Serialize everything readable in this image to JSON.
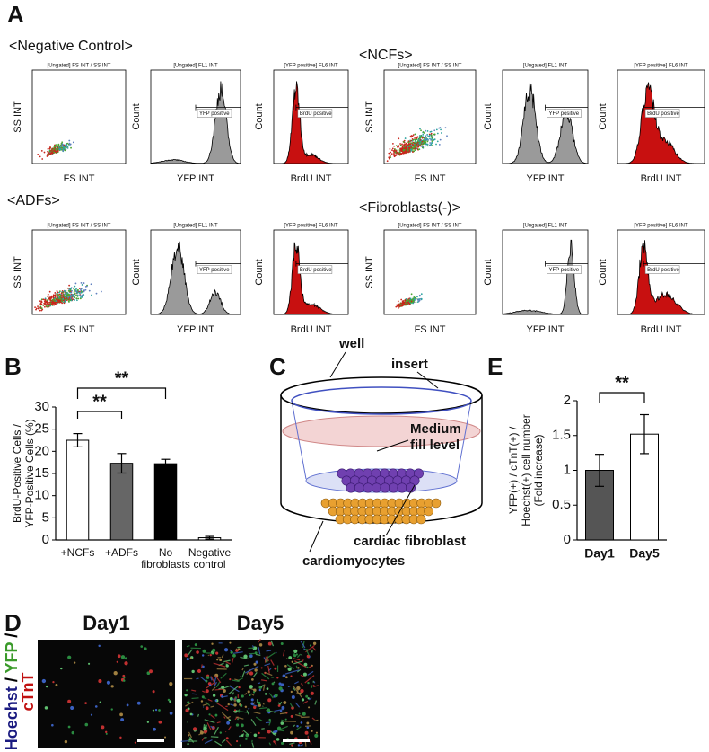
{
  "panel_a": {
    "label": "A",
    "groups": [
      {
        "title": "<Negative Control>",
        "plots": [
          {
            "header": "[Ungated] FS INT / SS INT",
            "x_label": "FS INT",
            "y_label": "SS INT"
          },
          {
            "header": "[Ungated] FL1 INT",
            "x_label": "YFP INT",
            "y_label": "Count",
            "gate_label": "YFP positive"
          },
          {
            "header": "[YFP positive] FL6 INT",
            "x_label": "BrdU INT",
            "y_label": "Count",
            "gate_label": "BrdU positive"
          }
        ]
      },
      {
        "title": "<NCFs>",
        "plots": [
          {
            "header": "[Ungated] FS INT / SS INT",
            "x_label": "FS INT",
            "y_label": "SS INT"
          },
          {
            "header": "[Ungated] FL1 INT",
            "x_label": "YFP INT",
            "y_label": "Count",
            "gate_label": "YFP positive"
          },
          {
            "header": "[YFP positive] FL6 INT",
            "x_label": "BrdU INT",
            "y_label": "Count",
            "gate_label": "BrdU positive"
          }
        ]
      },
      {
        "title": "<ADFs>",
        "plots": [
          {
            "header": "[Ungated] FS INT / SS INT",
            "x_label": "FS INT",
            "y_label": "SS INT"
          },
          {
            "header": "[Ungated] FL1 INT",
            "x_label": "YFP INT",
            "y_label": "Count",
            "gate_label": "YFP positive"
          },
          {
            "header": "[YFP positive] FL6 INT",
            "x_label": "BrdU INT",
            "y_label": "Count",
            "gate_label": "BrdU positive"
          }
        ]
      },
      {
        "title": "<Fibroblasts(-)>",
        "plots": [
          {
            "header": "[Ungated] FS INT / SS INT",
            "x_label": "FS INT",
            "y_label": "SS INT"
          },
          {
            "header": "[Ungated] FL1 INT",
            "x_label": "YFP INT",
            "y_label": "Count",
            "gate_label": "YFP positive"
          },
          {
            "header": "[YFP positive] FL6 INT",
            "x_label": "BrdU INT",
            "y_label": "Count",
            "gate_label": "BrdU positive"
          }
        ]
      }
    ]
  },
  "panel_b": {
    "label": "B",
    "type": "bar",
    "y_label": [
      "BrdU-Positive Cells /",
      "YFP-Positive Cells (%)"
    ],
    "categories": [
      [
        "+NCFs"
      ],
      [
        "+ADFs"
      ],
      [
        "No",
        "fibroblasts"
      ],
      [
        "Negative",
        "control"
      ]
    ],
    "values": [
      22.5,
      17.3,
      17.2,
      0.5
    ],
    "errors": [
      1.5,
      2.2,
      1.0,
      0.3
    ],
    "colors": [
      "#ffffff",
      "#666666",
      "#000000",
      "#ffffff"
    ],
    "ylim": [
      0,
      30
    ],
    "yticks": [
      0,
      5,
      10,
      15,
      20,
      25,
      30
    ],
    "significance": [
      "**",
      "**"
    ]
  },
  "panel_c": {
    "label": "C",
    "well": "well",
    "insert": "insert",
    "medium": [
      "Medium",
      "fill level"
    ],
    "fibroblast": "cardiac fibroblast",
    "cardiomyocytes": "cardiomyocytes"
  },
  "panel_d": {
    "label": "D",
    "titles": [
      "Day1",
      "Day5"
    ],
    "stain_label": [
      {
        "text": "Hoechst",
        "color": "#1a1a80"
      },
      {
        "text": " / ",
        "color": "#000000"
      },
      {
        "text": "YFP",
        "color": "#3a9a2a"
      },
      {
        "text": " /",
        "color": "#000000"
      },
      {
        "text": "cTnT",
        "color": "#c01010"
      }
    ]
  },
  "panel_e": {
    "label": "E",
    "type": "bar",
    "y_label": [
      "YFP(+) / cTnT(+) /",
      "Hoechst(+) cell number",
      "(Fold increase)"
    ],
    "categories": [
      "Day1",
      "Day5"
    ],
    "values": [
      1.0,
      1.52
    ],
    "errors": [
      0.23,
      0.28
    ],
    "colors": [
      "#555555",
      "#ffffff"
    ],
    "ylim": [
      0,
      2
    ],
    "yticks": [
      0,
      0.5,
      1,
      1.5,
      2
    ],
    "significance": [
      "**"
    ]
  }
}
